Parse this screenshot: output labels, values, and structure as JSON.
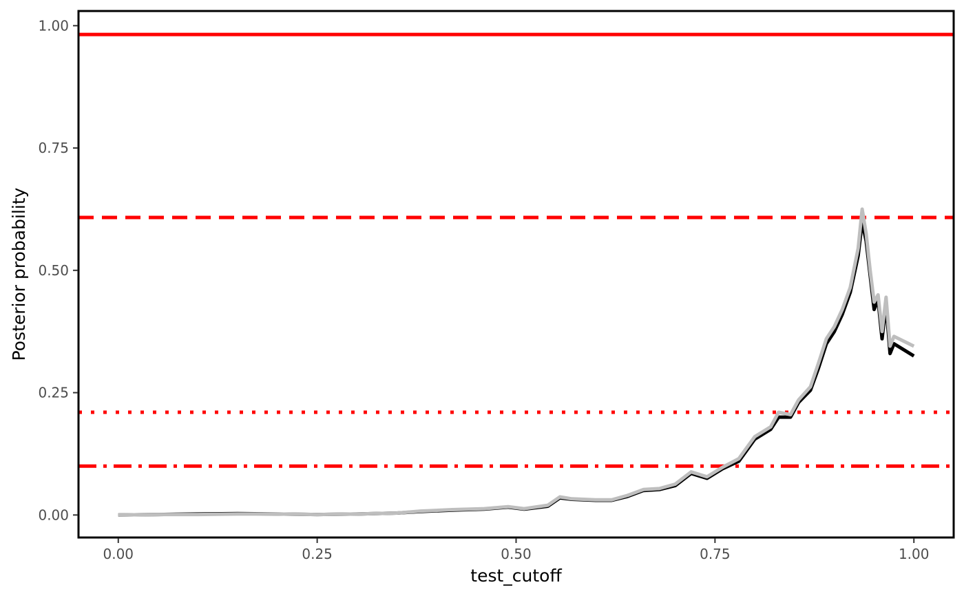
{
  "chart_data": {
    "type": "line",
    "title": "",
    "xlabel": "test_cutoff",
    "ylabel": "Posterior probability",
    "xlim": [
      -0.05,
      1.05
    ],
    "ylim": [
      -0.046,
      1.03
    ],
    "xticks": [
      0.0,
      0.25,
      0.5,
      0.75,
      1.0
    ],
    "xtick_labels": [
      "0.00",
      "0.25",
      "0.50",
      "0.75",
      "1.00"
    ],
    "yticks": [
      0.0,
      0.25,
      0.5,
      0.75,
      1.0
    ],
    "ytick_labels": [
      "0.00",
      "0.25",
      "0.50",
      "0.75",
      "1.00"
    ],
    "grid": false,
    "legend": "none",
    "reference_lines": [
      {
        "y": 0.982,
        "style": "solid",
        "color": "#ff0000"
      },
      {
        "y": 0.608,
        "style": "dashed",
        "color": "#ff0000"
      },
      {
        "y": 0.21,
        "style": "dotted",
        "color": "#ff0000"
      },
      {
        "y": 0.1,
        "style": "dotdash",
        "color": "#ff0000"
      }
    ],
    "series": [
      {
        "color": "#000000",
        "x": [
          0.0,
          0.05,
          0.1,
          0.15,
          0.2,
          0.25,
          0.3,
          0.35,
          0.38,
          0.42,
          0.46,
          0.49,
          0.51,
          0.54,
          0.555,
          0.57,
          0.6,
          0.62,
          0.64,
          0.66,
          0.68,
          0.7,
          0.72,
          0.74,
          0.76,
          0.78,
          0.8,
          0.82,
          0.83,
          0.845,
          0.855,
          0.87,
          0.88,
          0.89,
          0.9,
          0.91,
          0.92,
          0.93,
          0.935,
          0.94,
          0.945,
          0.95,
          0.955,
          0.96,
          0.965,
          0.97,
          0.975,
          1.0
        ],
        "y": [
          0.0,
          0.001,
          0.002,
          0.003,
          0.002,
          0.001,
          0.002,
          0.004,
          0.007,
          0.01,
          0.012,
          0.016,
          0.012,
          0.018,
          0.035,
          0.032,
          0.03,
          0.03,
          0.038,
          0.05,
          0.052,
          0.06,
          0.085,
          0.075,
          0.095,
          0.11,
          0.155,
          0.175,
          0.2,
          0.2,
          0.23,
          0.255,
          0.3,
          0.35,
          0.375,
          0.41,
          0.455,
          0.53,
          0.6,
          0.56,
          0.49,
          0.42,
          0.44,
          0.36,
          0.43,
          0.33,
          0.35,
          0.325
        ]
      },
      {
        "color": "#bebebe",
        "x": [
          0.0,
          0.05,
          0.1,
          0.15,
          0.2,
          0.25,
          0.3,
          0.35,
          0.38,
          0.42,
          0.46,
          0.49,
          0.51,
          0.54,
          0.555,
          0.57,
          0.6,
          0.62,
          0.64,
          0.66,
          0.68,
          0.7,
          0.72,
          0.74,
          0.76,
          0.78,
          0.8,
          0.82,
          0.83,
          0.845,
          0.855,
          0.87,
          0.88,
          0.89,
          0.9,
          0.91,
          0.92,
          0.93,
          0.935,
          0.94,
          0.945,
          0.95,
          0.955,
          0.96,
          0.965,
          0.97,
          0.975,
          1.0
        ],
        "y": [
          0.0,
          0.001,
          0.001,
          0.002,
          0.002,
          0.001,
          0.002,
          0.004,
          0.008,
          0.011,
          0.013,
          0.017,
          0.013,
          0.02,
          0.037,
          0.033,
          0.031,
          0.031,
          0.04,
          0.052,
          0.054,
          0.063,
          0.088,
          0.078,
          0.098,
          0.115,
          0.16,
          0.18,
          0.21,
          0.205,
          0.235,
          0.262,
          0.31,
          0.36,
          0.385,
          0.42,
          0.465,
          0.545,
          0.625,
          0.575,
          0.5,
          0.435,
          0.45,
          0.375,
          0.445,
          0.345,
          0.365,
          0.345
        ]
      }
    ]
  }
}
